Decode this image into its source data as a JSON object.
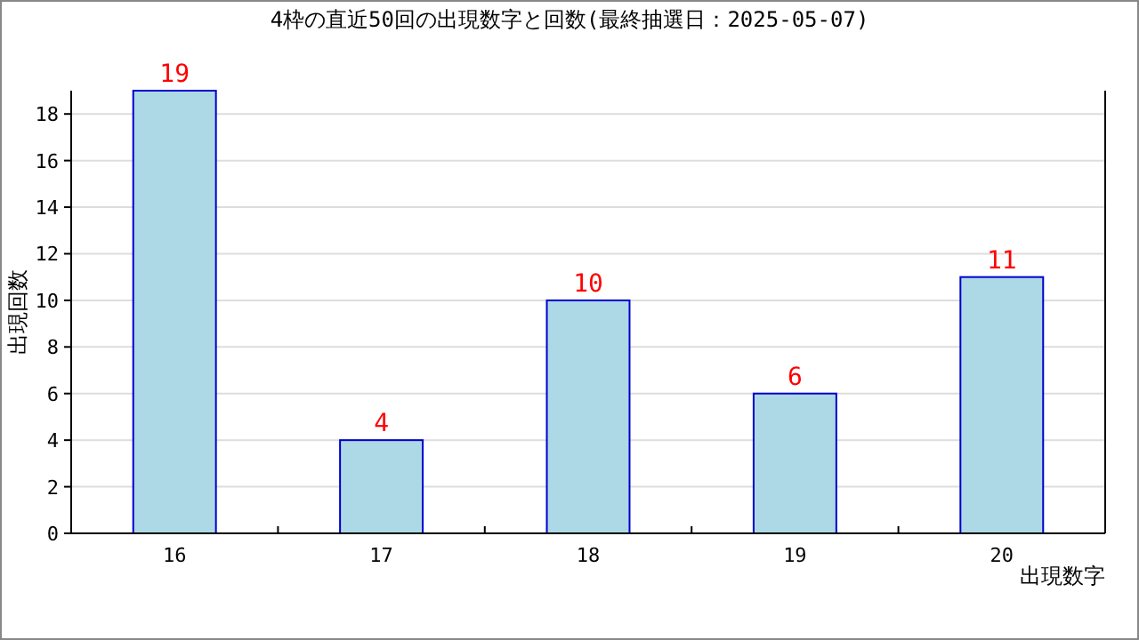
{
  "chart_data": {
    "type": "bar",
    "title": "4枠の直近50回の出現数字と回数(最終抽選日：2025-05-07)",
    "xlabel": "出現数字",
    "ylabel": "出現回数",
    "categories": [
      "16",
      "17",
      "18",
      "19",
      "20"
    ],
    "values": [
      19,
      4,
      10,
      6,
      11
    ],
    "color": "#add8e6",
    "ylim": [
      0,
      19
    ],
    "yticks": [
      0,
      2,
      4,
      6,
      8,
      10,
      12,
      14,
      16,
      18
    ],
    "grid": "y",
    "data_labels": true
  }
}
